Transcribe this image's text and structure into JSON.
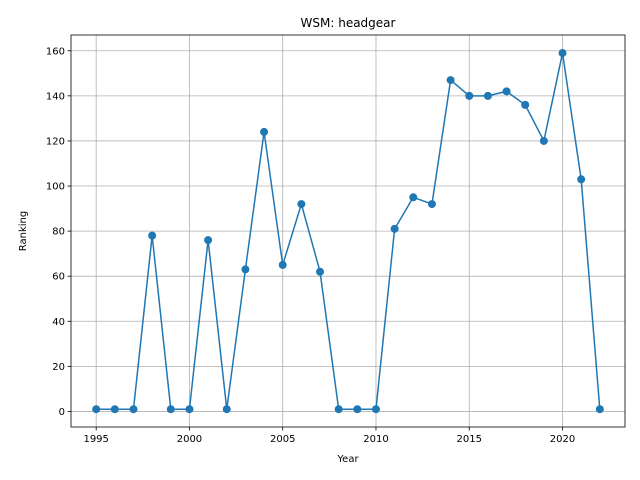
{
  "chart_data": {
    "type": "line",
    "title": "WSM: headgear",
    "xlabel": "Year",
    "ylabel": "Ranking",
    "x": [
      1995,
      1996,
      1997,
      1998,
      1999,
      2000,
      2001,
      2002,
      2003,
      2004,
      2005,
      2006,
      2007,
      2008,
      2009,
      2010,
      2011,
      2012,
      2013,
      2014,
      2015,
      2016,
      2017,
      2018,
      2019,
      2020,
      2021,
      2022
    ],
    "values": [
      1,
      1,
      1,
      78,
      1,
      1,
      76,
      1,
      63,
      124,
      65,
      92,
      62,
      1,
      1,
      1,
      81,
      95,
      92,
      147,
      140,
      140,
      142,
      136,
      120,
      159,
      103,
      1
    ],
    "color": "#1f77b4",
    "marker": "o",
    "xlim": [
      1993.65,
      2023.35
    ],
    "xticks": [
      1995,
      2000,
      2005,
      2010,
      2015,
      2020
    ],
    "ylim": [
      -6.9,
      167.0
    ],
    "yticks": [
      0,
      20,
      40,
      60,
      80,
      100,
      120,
      140,
      160
    ],
    "grid": true
  }
}
